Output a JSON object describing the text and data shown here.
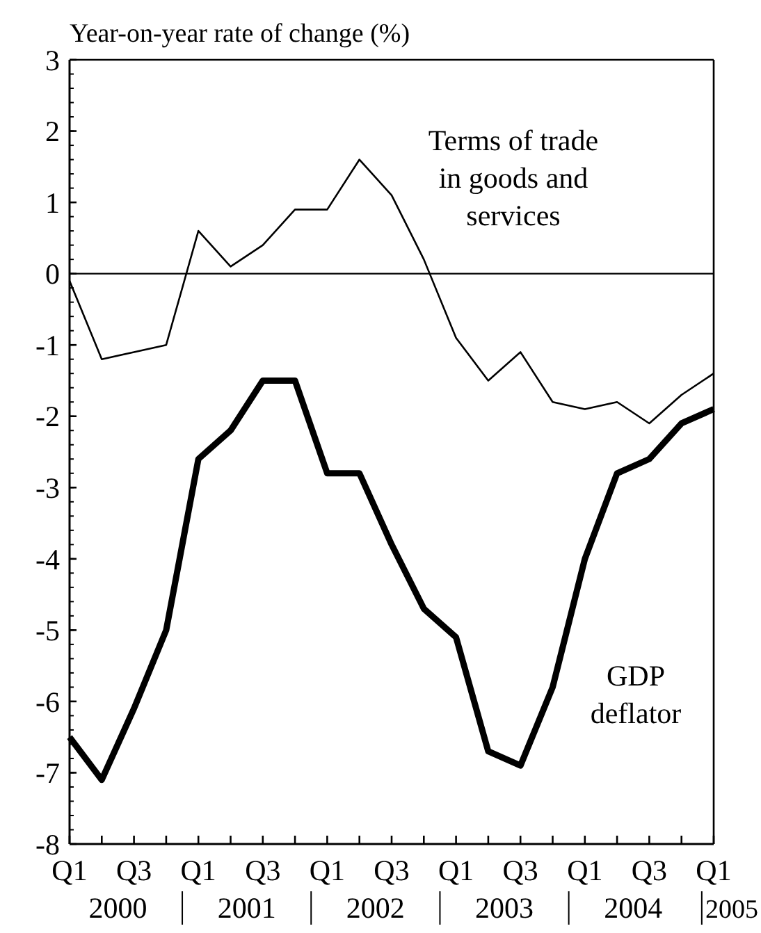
{
  "chart_data": {
    "type": "line",
    "ylabel": "Year-on-year rate of change (%)",
    "categories": [
      "Q1",
      null,
      "Q3",
      null,
      "Q1",
      null,
      "Q3",
      null,
      "Q1",
      null,
      "Q3",
      null,
      "Q1",
      null,
      "Q3",
      null,
      "Q1",
      null,
      "Q3",
      null,
      "Q1"
    ],
    "series": [
      {
        "name": "Terms of trade in goods and services",
        "color": "#000000",
        "values": [
          -0.1,
          -1.2,
          -1.1,
          -1.0,
          0.6,
          0.1,
          0.4,
          0.9,
          0.9,
          1.6,
          1.1,
          0.2,
          -0.9,
          -1.5,
          -1.1,
          -1.8,
          -1.9,
          -1.8,
          -2.1,
          -1.7,
          -1.4
        ]
      },
      {
        "name": "GDP deflator",
        "color": "#000000",
        "values": [
          -6.5,
          -7.1,
          -6.1,
          -5.0,
          -2.6,
          -2.2,
          -1.5,
          -1.5,
          -2.8,
          -2.8,
          -3.8,
          -4.7,
          -5.1,
          -6.7,
          -6.9,
          -5.8,
          -4.0,
          -2.8,
          -2.6,
          -2.1,
          -1.9
        ]
      }
    ],
    "ylim": [
      -8,
      3
    ],
    "yticks": [
      -8,
      -7,
      -6,
      -5,
      -4,
      -3,
      -2,
      -1,
      0,
      1,
      2,
      3
    ],
    "ref_lines": [
      {
        "axis": "y",
        "value": 0
      }
    ],
    "annotations": [
      "2000",
      "2001",
      "2002",
      "2003",
      "2004",
      "2005"
    ],
    "grid": false,
    "line_style": "solid"
  }
}
